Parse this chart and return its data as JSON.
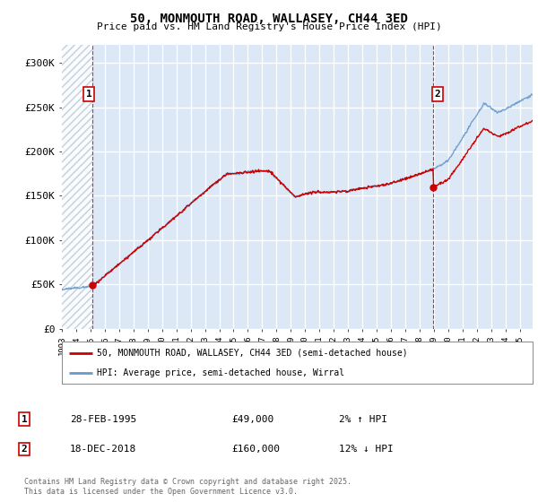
{
  "title": "50, MONMOUTH ROAD, WALLASEY, CH44 3ED",
  "subtitle": "Price paid vs. HM Land Registry's House Price Index (HPI)",
  "ylim": [
    0,
    320000
  ],
  "yticks": [
    0,
    50000,
    100000,
    150000,
    200000,
    250000,
    300000
  ],
  "ytick_labels": [
    "£0",
    "£50K",
    "£100K",
    "£150K",
    "£200K",
    "£250K",
    "£300K"
  ],
  "legend_line1": "50, MONMOUTH ROAD, WALLASEY, CH44 3ED (semi-detached house)",
  "legend_line2": "HPI: Average price, semi-detached house, Wirral",
  "annotation1_label": "1",
  "annotation1_date": "28-FEB-1995",
  "annotation1_price": "£49,000",
  "annotation1_hpi": "2% ↑ HPI",
  "annotation2_label": "2",
  "annotation2_date": "18-DEC-2018",
  "annotation2_price": "£160,000",
  "annotation2_hpi": "12% ↓ HPI",
  "footer": "Contains HM Land Registry data © Crown copyright and database right 2025.\nThis data is licensed under the Open Government Licence v3.0.",
  "sale1_x": 1995.15,
  "sale1_y": 49000,
  "sale2_x": 2018.96,
  "sale2_y": 160000,
  "xmin": 1993.0,
  "xmax": 2025.9,
  "red_line_color": "#cc0000",
  "blue_line_color": "#6699cc",
  "background_color": "#dce8f5",
  "hatch_color": "#b8c8d8",
  "grid_color": "#ffffff"
}
